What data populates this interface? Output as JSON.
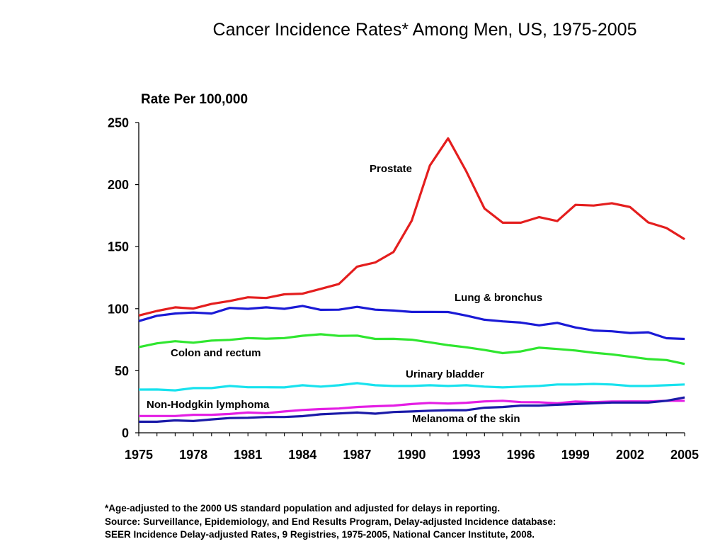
{
  "chart_data": {
    "type": "line",
    "title": "Cancer Incidence Rates* Among Men, US, 1975-2005",
    "ylabel": "Rate Per 100,000",
    "xlabel": "",
    "xlim": [
      1975,
      2005
    ],
    "ylim": [
      0,
      250
    ],
    "xticks": [
      1975,
      1978,
      1981,
      1984,
      1987,
      1990,
      1993,
      1996,
      1999,
      2002,
      2005
    ],
    "yticks": [
      0,
      50,
      100,
      150,
      200,
      250
    ],
    "grid": false,
    "legend": "direct labels on chart",
    "x": [
      1975,
      1976,
      1977,
      1978,
      1979,
      1980,
      1981,
      1982,
      1983,
      1984,
      1985,
      1986,
      1987,
      1988,
      1989,
      1990,
      1991,
      1992,
      1993,
      1994,
      1995,
      1996,
      1997,
      1998,
      1999,
      2000,
      2001,
      2002,
      2003,
      2004,
      2005
    ],
    "series": [
      {
        "name": "Prostate",
        "color": "#e41e1e",
        "values": [
          94.5,
          98.2,
          101.1,
          100.1,
          103.8,
          106.2,
          109.2,
          108.6,
          111.6,
          112.1,
          116.0,
          119.9,
          133.9,
          137.3,
          145.7,
          170.9,
          215.4,
          237.3,
          210.7,
          180.7,
          169.3,
          169.3,
          173.8,
          170.6,
          183.7,
          183.1,
          185.0,
          181.9,
          169.5,
          165.0,
          156.0
        ]
      },
      {
        "name": "Lung & bronchus",
        "color": "#1a1ad6",
        "values": [
          90.0,
          94.3,
          96.1,
          96.9,
          96.1,
          100.6,
          99.9,
          101.1,
          99.9,
          102.2,
          99.1,
          99.2,
          101.5,
          99.2,
          98.5,
          97.4,
          97.4,
          97.3,
          94.4,
          91.1,
          89.8,
          88.8,
          86.6,
          88.6,
          84.9,
          82.4,
          81.8,
          80.4,
          81.0,
          76.2,
          75.6
        ]
      },
      {
        "name": "Colon and rectum",
        "color": "#2fe62f",
        "values": [
          69.0,
          72.1,
          73.8,
          72.6,
          74.3,
          74.9,
          76.3,
          75.8,
          76.3,
          78.2,
          79.4,
          78.1,
          78.3,
          75.6,
          75.7,
          75.0,
          72.9,
          70.6,
          68.9,
          66.7,
          64.2,
          65.6,
          68.6,
          67.5,
          66.3,
          64.5,
          63.2,
          61.3,
          59.4,
          58.6,
          55.5
        ]
      },
      {
        "name": "Urinary bladder",
        "color": "#18e2ee",
        "values": [
          34.8,
          34.9,
          34.2,
          36.0,
          36.0,
          37.7,
          36.7,
          36.7,
          36.6,
          38.3,
          37.2,
          38.3,
          40.0,
          38.3,
          37.7,
          37.7,
          38.3,
          37.7,
          38.3,
          37.2,
          36.6,
          37.2,
          37.7,
          38.9,
          38.9,
          39.4,
          38.9,
          37.7,
          37.7,
          38.3,
          38.9
        ]
      },
      {
        "name": "Non-Hodgkin lymphoma",
        "color": "#e41ee4",
        "values": [
          13.5,
          13.5,
          13.5,
          14.5,
          14.5,
          15.2,
          16.3,
          15.8,
          17.2,
          18.4,
          19.1,
          19.6,
          20.8,
          21.4,
          21.9,
          23.2,
          24.1,
          23.6,
          24.2,
          25.3,
          25.8,
          24.7,
          24.6,
          23.8,
          25.2,
          24.7,
          25.2,
          25.3,
          25.3,
          25.8,
          25.8
        ]
      },
      {
        "name": "Melanoma of the skin",
        "color": "#1a1aa8",
        "values": [
          8.9,
          8.9,
          10.0,
          9.5,
          10.8,
          11.9,
          12.1,
          12.7,
          12.7,
          13.4,
          14.9,
          15.6,
          16.3,
          15.4,
          16.7,
          17.2,
          17.8,
          18.2,
          18.2,
          20.2,
          20.8,
          21.9,
          21.9,
          22.6,
          23.2,
          23.8,
          24.4,
          24.4,
          24.4,
          25.8,
          28.5
        ]
      }
    ],
    "annotations": [
      {
        "text": "Prostate",
        "series": "Prostate"
      },
      {
        "text": "Lung & bronchus",
        "series": "Lung & bronchus"
      },
      {
        "text": "Colon and rectum",
        "series": "Colon and rectum"
      },
      {
        "text": "Urinary bladder",
        "series": "Urinary bladder"
      },
      {
        "text": "Non-Hodgkin lymphoma",
        "series": "Non-Hodgkin lymphoma"
      },
      {
        "text": "Melanoma of the skin",
        "series": "Melanoma of the skin"
      }
    ]
  },
  "footnote": {
    "line1": "*Age-adjusted to the 2000 US standard population and adjusted for delays in reporting.",
    "line2": "Source: Surveillance, Epidemiology, and End Results Program, Delay-adjusted Incidence database:",
    "line3": "SEER Incidence Delay-adjusted Rates, 9 Registries, 1975-2005, National Cancer Institute, 2008."
  }
}
